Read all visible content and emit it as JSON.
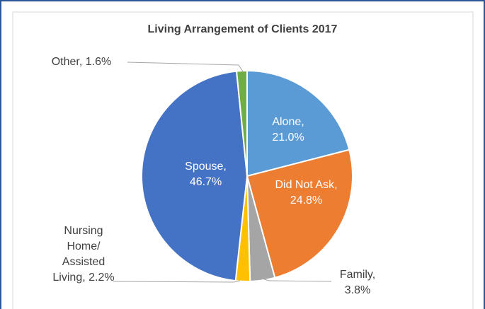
{
  "chart_data": {
    "type": "pie",
    "title": "Living Arrangement of Clients 2017",
    "categories": [
      "Alone",
      "Did Not Ask",
      "Family",
      "Nursing Home/ Assisted Living",
      "Spouse",
      "Other"
    ],
    "values": [
      21.0,
      24.8,
      3.8,
      2.2,
      46.7,
      1.6
    ],
    "value_labels": [
      "21.0%",
      "24.8%",
      "3.8%",
      "2.2%",
      "46.7%",
      "1.6%"
    ],
    "colors": [
      "#5b9bd5",
      "#ed7d31",
      "#a5a5a5",
      "#ffc000",
      "#4472c4",
      "#70ad47"
    ]
  }
}
